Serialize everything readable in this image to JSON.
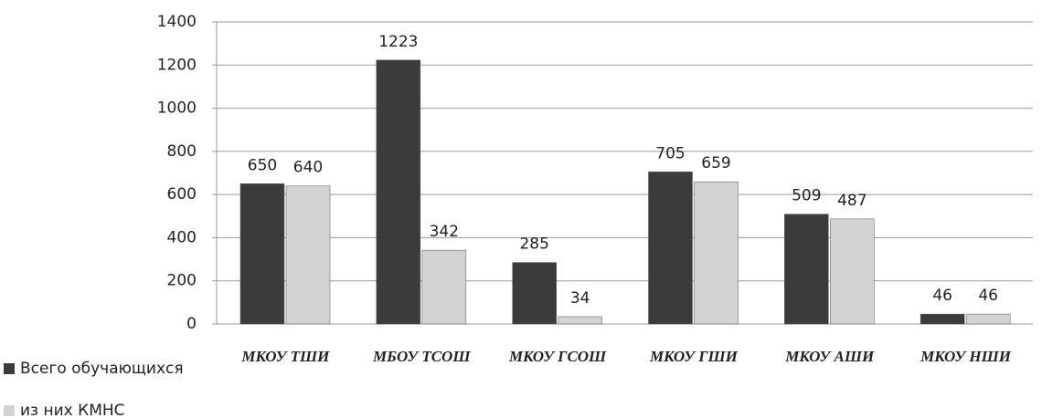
{
  "chart_data": {
    "type": "bar",
    "categories": [
      "МКОУ ТШИ",
      "МБОУ ТСОШ",
      "МКОУ ГСОШ",
      "МКОУ ГШИ",
      "МКОУ АШИ",
      "МКОУ НШИ"
    ],
    "series": [
      {
        "name": "Всего обучающихся",
        "color": "#3b3b3b",
        "values": [
          650,
          1223,
          285,
          705,
          509,
          46
        ]
      },
      {
        "name": "из них КМНС",
        "color": "#d3d3d3",
        "values": [
          640,
          342,
          34,
          659,
          487,
          46
        ]
      }
    ],
    "ylim": [
      0,
      1400
    ],
    "yticks": [
      0,
      200,
      400,
      600,
      800,
      1000,
      1200,
      1400
    ],
    "grid": true
  }
}
